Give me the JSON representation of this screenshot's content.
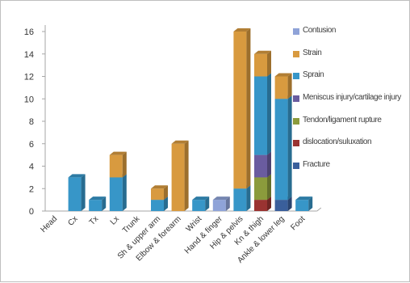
{
  "chart_data": {
    "type": "bar",
    "stacked": true,
    "three_d": true,
    "categories": [
      "Head",
      "Cx",
      "Tx",
      "Lx",
      "Trunk",
      "Sh & upper arm",
      "Elbow & forearm",
      "Wrist",
      "Hand & finger",
      "Hip & pelvis",
      "Kn & thigh",
      "Ankle & lower leg",
      "Foot"
    ],
    "ylim": [
      0,
      16
    ],
    "yticks": [
      0,
      2,
      4,
      6,
      8,
      10,
      12,
      14,
      16
    ],
    "grid": false,
    "legend_position": "right",
    "series": [
      {
        "name": "Fracture",
        "color": "#3a5f9b",
        "values": [
          0,
          0,
          0,
          0,
          0,
          0,
          0,
          0,
          0,
          0,
          0,
          1,
          0
        ]
      },
      {
        "name": "dislocation/suluxation",
        "color": "#9a3331",
        "values": [
          0,
          0,
          0,
          0,
          0,
          0,
          0,
          0,
          0,
          0,
          1,
          0,
          0
        ]
      },
      {
        "name": "Tendon/ligament rupture",
        "color": "#8b9b3c",
        "values": [
          0,
          0,
          0,
          0,
          0,
          0,
          0,
          0,
          0,
          0,
          2,
          0,
          0
        ]
      },
      {
        "name": "Meniscus injury/cartilage injury",
        "color": "#6a5c9f",
        "values": [
          0,
          0,
          0,
          0,
          0,
          0,
          0,
          0,
          0,
          0,
          2,
          0,
          0
        ]
      },
      {
        "name": "Sprain",
        "color": "#3796c8",
        "values": [
          0,
          3,
          1,
          3,
          0,
          1,
          0,
          1,
          0,
          2,
          7,
          9,
          1
        ]
      },
      {
        "name": "Strain",
        "color": "#d89a3f",
        "values": [
          0,
          0,
          0,
          2,
          0,
          1,
          6,
          0,
          0,
          14,
          2,
          2,
          0
        ]
      },
      {
        "name": "Contusion",
        "color": "#8fa3d8",
        "values": [
          0,
          0,
          0,
          0,
          0,
          0,
          0,
          0,
          1,
          0,
          0,
          0,
          0
        ]
      }
    ]
  }
}
